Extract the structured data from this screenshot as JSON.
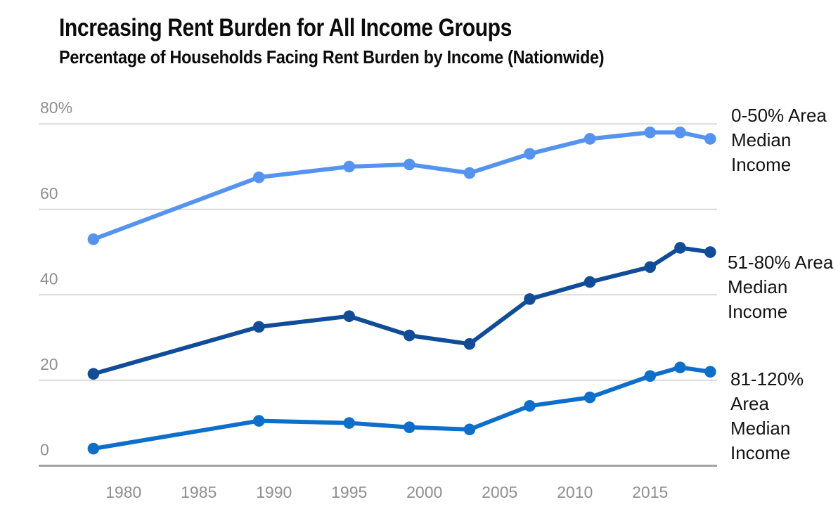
{
  "header": {
    "title": "Increasing Rent Burden for All Income Groups",
    "subtitle": "Percentage of Households Facing Rent Burden by Income (Nationwide)"
  },
  "chart_data": {
    "type": "line",
    "title": "Increasing Rent Burden for All Income Groups",
    "subtitle": "Percentage of Households Facing Rent Burden by Income (Nationwide)",
    "xlabel": "",
    "ylabel": "",
    "x": [
      1978,
      1989,
      1995,
      1999,
      2003,
      2007,
      2011,
      2015,
      2017,
      2019
    ],
    "series": [
      {
        "name": "0-50% Area Median Income",
        "label_lines": [
          "0-50% Area",
          "Median",
          "Income"
        ],
        "color": "#5494F0",
        "values": [
          53,
          67.5,
          70,
          70.5,
          68.5,
          73,
          76.5,
          78,
          78,
          76.5
        ]
      },
      {
        "name": "51-80% Area Median Income",
        "label_lines": [
          "51-80% Area",
          "Median",
          "Income"
        ],
        "color": "#114C99",
        "values": [
          21.5,
          32.5,
          35,
          30.5,
          28.5,
          39,
          43,
          46.5,
          51,
          50
        ]
      },
      {
        "name": "81-120% Area Median Income",
        "label_lines": [
          "81-120%",
          "Area",
          "Median",
          "Income"
        ],
        "color": "#0E6FCB",
        "values": [
          4,
          10.5,
          10,
          9,
          8.5,
          14,
          16,
          21,
          23,
          22
        ]
      }
    ],
    "y_ticks": [
      0,
      20,
      40,
      60,
      80
    ],
    "y_tick_labels": [
      "0",
      "20",
      "40",
      "60",
      "80%"
    ],
    "x_ticks": [
      1980,
      1985,
      1990,
      1995,
      2000,
      2005,
      2010,
      2015
    ],
    "ylim": [
      0,
      84
    ],
    "xlim": [
      1976,
      2020.5
    ],
    "grid": "horizontal",
    "legend_position": "right",
    "gridline_color": "#dadada",
    "baseline_color": "#a3a3a3",
    "axis_label_color": "#8f8f8f",
    "legend_text_color": "#141414"
  }
}
